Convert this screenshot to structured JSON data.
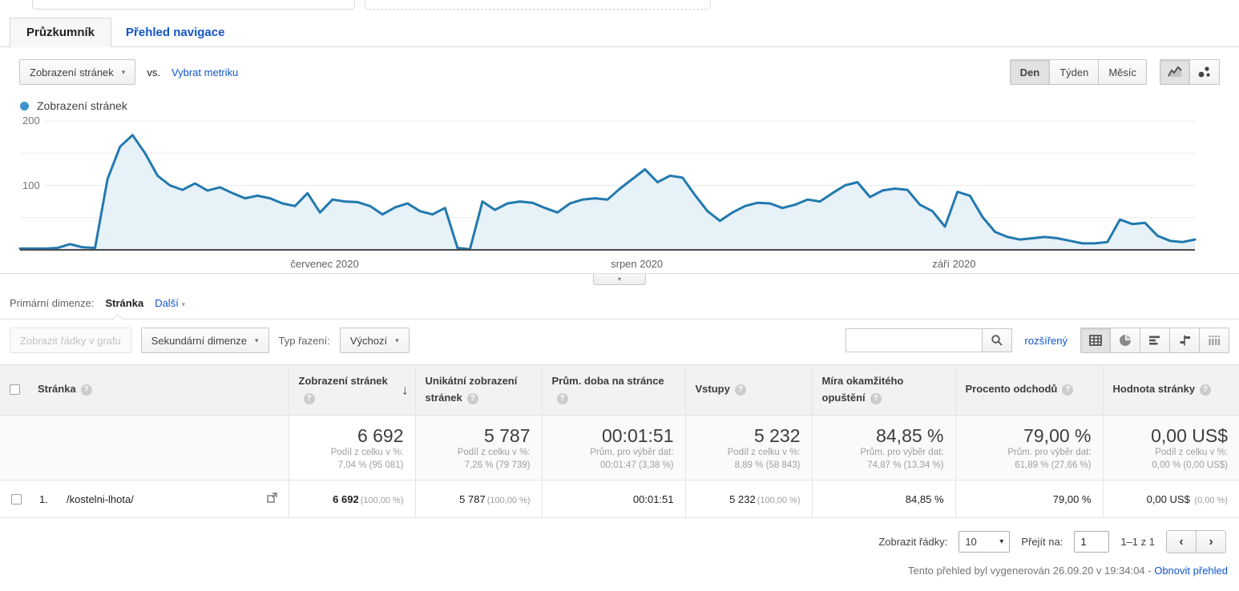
{
  "tabs": {
    "explorer": "Průzkumník",
    "navigation": "Přehled navigace"
  },
  "controls": {
    "metric_selector": "Zobrazení stránek",
    "vs_label": "vs.",
    "select_metric_link": "Vybrat metriku",
    "granularity": {
      "day": "Den",
      "week": "Týden",
      "month": "Měsíc"
    }
  },
  "legend_label": "Zobrazení stránek",
  "chart_data": {
    "type": "area",
    "title": "Zobrazení stránek",
    "x_axis_labels": [
      "červenec 2020",
      "srpen 2020",
      "září 2020"
    ],
    "ylim": [
      0,
      200
    ],
    "yticks": [
      100,
      200
    ],
    "gridlines": [
      50,
      100,
      150,
      200
    ],
    "legend_position": "top-left",
    "line_color": "#2279ae",
    "fill_color": "#e7f1f8",
    "legend_dot_color": "#3d94cc",
    "series": [
      {
        "name": "Zobrazení stránek",
        "values": [
          2,
          2,
          2,
          3,
          9,
          4,
          3,
          110,
          160,
          178,
          150,
          115,
          100,
          93,
          103,
          92,
          97,
          88,
          80,
          84,
          80,
          72,
          68,
          88,
          58,
          78,
          75,
          74,
          68,
          55,
          66,
          72,
          60,
          55,
          65,
          3,
          1,
          75,
          62,
          72,
          75,
          73,
          65,
          58,
          72,
          78,
          80,
          78,
          95,
          110,
          125,
          105,
          115,
          112,
          85,
          60,
          45,
          58,
          68,
          73,
          72,
          65,
          70,
          78,
          75,
          88,
          100,
          105,
          82,
          92,
          95,
          93,
          70,
          60,
          36,
          90,
          84,
          51,
          28,
          20,
          16,
          18,
          20,
          18,
          14,
          10,
          10,
          12,
          47,
          40,
          42,
          22,
          14,
          12,
          16
        ]
      }
    ]
  },
  "primary_dimension": {
    "label": "Primární dimenze:",
    "active": "Stránka",
    "more_link": "Další"
  },
  "toolbar": {
    "plot_rows_button": "Zobrazit řádky v grafu",
    "secondary_dimension_button": "Sekundární dimenze",
    "sort_label": "Typ řazení:",
    "sort_value": "Výchozí",
    "advanced_link": "rozšířený"
  },
  "table": {
    "headers": {
      "page": "Stránka",
      "pageviews": "Zobrazení stránek",
      "unique_pageviews": "Unikátní zobrazení stránek",
      "avg_time_on_page": "Prům. doba na stránce",
      "entrances": "Vstupy",
      "bounce_rate": "Míra okamžitého opuštění",
      "exit_rate": "Procento odchodů",
      "page_value": "Hodnota stránky"
    },
    "summary": {
      "pageviews": {
        "value": "6 692",
        "line1": "Podíl z celku v %:",
        "line2": "7,04 % (95 081)"
      },
      "unique_pageviews": {
        "value": "5 787",
        "line1": "Podíl z celku v %:",
        "line2": "7,26 % (79 739)"
      },
      "avg_time": {
        "value": "00:01:51",
        "line1": "Prům. pro výběr dat:",
        "line2": "00:01:47 (3,38 %)"
      },
      "entrances": {
        "value": "5 232",
        "line1": "Podíl z celku v %:",
        "line2": "8,89 % (58 843)"
      },
      "bounce_rate": {
        "value": "84,85 %",
        "line1": "Prům. pro výběr dat:",
        "line2": "74,87 % (13,34 %)"
      },
      "exit_rate": {
        "value": "79,00 %",
        "line1": "Prům. pro výběr dat:",
        "line2": "61,89 % (27,66 %)"
      },
      "page_value": {
        "value": "0,00 US$",
        "line1": "Podíl z celku v %:",
        "line2": "0,00 % (0,00 US$)"
      }
    },
    "row": {
      "index": "1.",
      "page": "/kostelni-lhota/",
      "pageviews": "6 692",
      "pageviews_pct": "(100,00 %)",
      "unique": "5 787",
      "unique_pct": "(100,00 %)",
      "avg_time": "00:01:51",
      "entrances": "5 232",
      "entrances_pct": "(100,00 %)",
      "bounce": "84,85 %",
      "exit": "79,00 %",
      "value": "0,00 US$",
      "value_pct": "(0,00 %)"
    }
  },
  "pagination": {
    "rows_label": "Zobrazit řádky:",
    "rows_value": "10",
    "goto_label": "Přejít na:",
    "goto_value": "1",
    "range": "1–1 z 1"
  },
  "footer": {
    "generated_text": "Tento přehled byl vygenerován 26.09.20 v 19:34:04 -",
    "refresh_link": "Obnovit přehled"
  },
  "icons": {
    "caret_down": "▾",
    "sort_desc": "↓",
    "prev_chevron": "‹",
    "next_chevron": "›",
    "help": "?"
  }
}
